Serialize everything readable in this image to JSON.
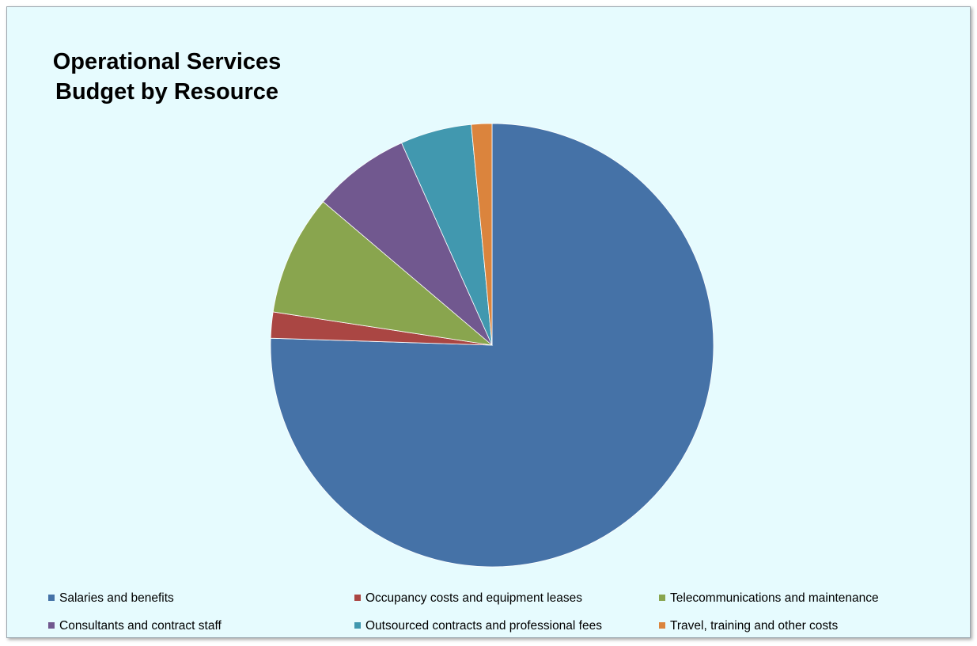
{
  "chart_data": {
    "type": "pie",
    "title_lines": [
      "Operational Services",
      "Budget by Resource"
    ],
    "legend_position": "bottom",
    "categories": [
      "Salaries and benefits",
      "Occupancy costs and equipment leases",
      "Telecommunications and maintenance",
      "Consultants and contract staff",
      "Outsourced contracts and professional fees",
      "Travel, training and other costs"
    ],
    "values": [
      75.5,
      1.9,
      8.8,
      7.1,
      5.2,
      1.5
    ],
    "colors": [
      "#4572a7",
      "#aa4643",
      "#89a54e",
      "#71588f",
      "#4198af",
      "#db843d"
    ],
    "start_angle": "12 o'clock",
    "direction": "clockwise"
  }
}
